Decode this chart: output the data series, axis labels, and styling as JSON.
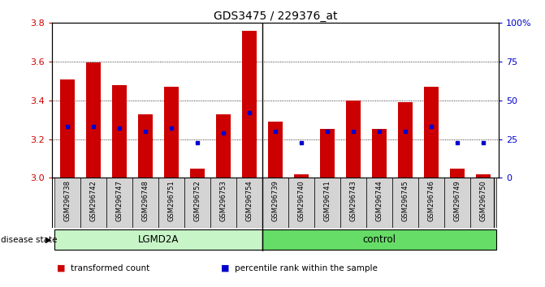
{
  "title": "GDS3475 / 229376_at",
  "samples": [
    "GSM296738",
    "GSM296742",
    "GSM296747",
    "GSM296748",
    "GSM296751",
    "GSM296752",
    "GSM296753",
    "GSM296754",
    "GSM296739",
    "GSM296740",
    "GSM296741",
    "GSM296743",
    "GSM296744",
    "GSM296745",
    "GSM296746",
    "GSM296749",
    "GSM296750"
  ],
  "transformed_count": [
    3.51,
    3.595,
    3.48,
    3.33,
    3.47,
    3.05,
    3.33,
    3.76,
    3.29,
    3.02,
    3.255,
    3.4,
    3.255,
    3.39,
    3.47,
    3.05,
    3.02
  ],
  "percentile_rank": [
    33,
    33,
    32,
    30,
    32,
    23,
    29,
    42,
    30,
    23,
    30,
    30,
    30,
    30,
    33,
    23,
    23
  ],
  "groups": [
    {
      "label": "LGMD2A",
      "start": 0,
      "end": 8,
      "color": "#c8f5c8"
    },
    {
      "label": "control",
      "start": 8,
      "end": 17,
      "color": "#66dd66"
    }
  ],
  "ylim_left": [
    3.0,
    3.8
  ],
  "ylim_right": [
    0,
    100
  ],
  "yticks_left": [
    3.0,
    3.2,
    3.4,
    3.6,
    3.8
  ],
  "yticks_right": [
    0,
    25,
    50,
    75,
    100
  ],
  "ytick_labels_right": [
    "0",
    "25",
    "50",
    "75",
    "100%"
  ],
  "bar_color": "#cc0000",
  "marker_color": "#0000cc",
  "bar_width": 0.55,
  "baseline": 3.0,
  "grid_color": "#000000",
  "bg_color": "#ffffff",
  "tick_label_color_left": "#cc0000",
  "tick_label_color_right": "#0000cc",
  "disease_state_label": "disease state",
  "sample_label_bg": "#d4d4d4",
  "legend_items": [
    {
      "label": "transformed count",
      "color": "#cc0000"
    },
    {
      "label": "percentile rank within the sample",
      "color": "#0000cc"
    }
  ],
  "lgmd2a_n": 8,
  "control_n": 9
}
